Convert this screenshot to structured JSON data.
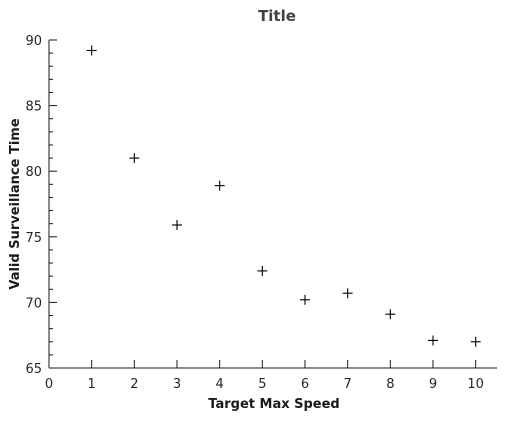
{
  "chart_data": {
    "type": "scatter",
    "title": "Title",
    "xlabel": "Target Max Speed",
    "ylabel": "Valid Surveillance Time",
    "xlim": [
      0,
      10.5
    ],
    "ylim": [
      65,
      90
    ],
    "x_ticks": [
      0,
      1,
      2,
      3,
      4,
      5,
      6,
      7,
      8,
      9,
      10
    ],
    "y_ticks": [
      65,
      70,
      75,
      80,
      85,
      90
    ],
    "y_minor_step": 1,
    "grid": false,
    "marker": "plus",
    "marker_color": "#000000",
    "points": [
      {
        "x": 1,
        "y": 89.2
      },
      {
        "x": 2,
        "y": 81.0
      },
      {
        "x": 3,
        "y": 75.9
      },
      {
        "x": 4,
        "y": 78.9
      },
      {
        "x": 5,
        "y": 72.4
      },
      {
        "x": 6,
        "y": 70.2
      },
      {
        "x": 7,
        "y": 70.7
      },
      {
        "x": 8,
        "y": 69.1
      },
      {
        "x": 9,
        "y": 67.1
      },
      {
        "x": 10,
        "y": 67.0
      }
    ]
  }
}
